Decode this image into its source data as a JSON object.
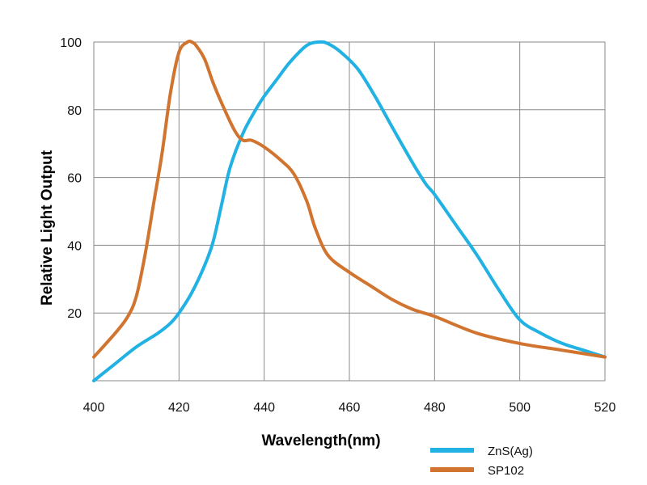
{
  "chart_data": {
    "type": "line",
    "title": "",
    "xlabel": "Wavelength(nm)",
    "ylabel": "Relative Light Output",
    "xlim": [
      400,
      520
    ],
    "ylim": [
      0,
      100
    ],
    "x_ticks": [
      "400",
      "420",
      "440",
      "460",
      "480",
      "500",
      "520"
    ],
    "y_ticks": [
      "20",
      "40",
      "60",
      "80",
      "100"
    ],
    "grid": true,
    "legend_position": "bottom-right",
    "series": [
      {
        "name": "ZnS(Ag)",
        "color": "#21b1e3",
        "x": [
          400,
          405,
          410,
          415,
          418,
          420,
          423,
          426,
          428,
          430,
          432,
          435,
          438,
          440,
          443,
          446,
          450,
          453,
          455,
          458,
          462,
          466,
          470,
          475,
          478,
          480,
          485,
          490,
          495,
          500,
          505,
          510,
          515,
          520
        ],
        "y": [
          0,
          5,
          10,
          14,
          17,
          20,
          26,
          34,
          41,
          52,
          63,
          73,
          80,
          84,
          89,
          94,
          99,
          100,
          99.5,
          97,
          92,
          84,
          75,
          64,
          58,
          55,
          46,
          37,
          27,
          18,
          14,
          11,
          9,
          7
        ]
      },
      {
        "name": "SP102",
        "color": "#d1742f",
        "x": [
          400,
          405,
          408,
          410,
          412,
          414,
          416,
          418,
          420,
          422,
          423,
          424,
          426,
          428,
          430,
          433,
          435,
          437,
          440,
          444,
          447,
          450,
          452,
          455,
          460,
          465,
          470,
          475,
          480,
          490,
          500,
          510,
          520
        ],
        "y": [
          7,
          14,
          19,
          25,
          37,
          52,
          67,
          85,
          97,
          100,
          100,
          99,
          95,
          88,
          82,
          74,
          71,
          71,
          69,
          65,
          61,
          53,
          45,
          37,
          32,
          28,
          24,
          21,
          19,
          14,
          11,
          9,
          7
        ]
      }
    ]
  }
}
